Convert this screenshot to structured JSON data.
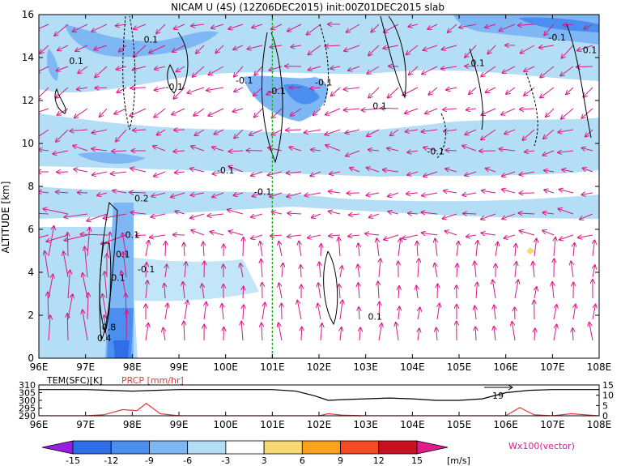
{
  "chart_data": {
    "type": "heatmap",
    "title": "NICAM U (4S) (12Z06DEC2015) init:00Z01DEC2015 slab",
    "ylabel": "ALTITUDE [km]",
    "xlabel": "",
    "x_ticks": [
      "96E",
      "97E",
      "98E",
      "99E",
      "100E",
      "101E",
      "102E",
      "103E",
      "104E",
      "105E",
      "106E",
      "107E",
      "108E"
    ],
    "y_ticks": [
      "0",
      "2",
      "4",
      "6",
      "8",
      "10",
      "12",
      "14",
      "16"
    ],
    "xlim": [
      96,
      108
    ],
    "ylim": [
      0,
      16
    ],
    "marker_longitude": 101,
    "contour_labels": [
      {
        "text": "0.1",
        "x": 96.8,
        "y": 13.7
      },
      {
        "text": "0.1",
        "x": 98.4,
        "y": 14.7
      },
      {
        "text": "-0.1",
        "x": 98.9,
        "y": 12.5
      },
      {
        "text": "-0.1",
        "x": 100.4,
        "y": 12.8
      },
      {
        "text": "-0.1",
        "x": 101.1,
        "y": 12.3
      },
      {
        "text": "-0.1",
        "x": 102.1,
        "y": 12.7
      },
      {
        "text": "0.1",
        "x": 103.3,
        "y": 11.6
      },
      {
        "text": "-0.1",
        "x": 104.5,
        "y": 9.5
      },
      {
        "text": "0.1",
        "x": 105.4,
        "y": 13.6
      },
      {
        "text": "-0.1",
        "x": 107.1,
        "y": 14.8
      },
      {
        "text": "0.1",
        "x": 107.8,
        "y": 14.2
      },
      {
        "text": "-0.1",
        "x": 100.0,
        "y": 8.6
      },
      {
        "text": "-0.1",
        "x": 100.8,
        "y": 7.6
      },
      {
        "text": "0.2",
        "x": 98.2,
        "y": 7.3
      },
      {
        "text": "0.1",
        "x": 98.0,
        "y": 5.6
      },
      {
        "text": "0.1",
        "x": 97.8,
        "y": 4.7
      },
      {
        "text": "-0.1",
        "x": 98.3,
        "y": 4.0
      },
      {
        "text": "0.1",
        "x": 97.7,
        "y": 3.6
      },
      {
        "text": "0.1",
        "x": 103.2,
        "y": 1.8
      },
      {
        "text": "0.8",
        "x": 97.5,
        "y": 1.3
      },
      {
        "text": "0.4",
        "x": 97.4,
        "y": 0.8
      }
    ],
    "colorbar": {
      "levels": [
        "-15",
        "-12",
        "-9",
        "-6",
        "-3",
        "3",
        "6",
        "9",
        "12",
        "15"
      ],
      "unit": "[m/s]",
      "colors": [
        "#9a1ee0",
        "#2f6ee6",
        "#4a8ff0",
        "#7fb6f4",
        "#b3def6",
        "#ffffff",
        "#f7d873",
        "#f9a21e",
        "#f64a22",
        "#c8101e",
        "#e01c8c"
      ]
    },
    "vector_label": "Wx100(vector)",
    "sub_panel": {
      "labels": {
        "tem": "TEM(SFC)[K]",
        "prcp": "PRCP [mm/hr]"
      },
      "left_ticks": [
        "310",
        "305",
        "300",
        "295",
        "290"
      ],
      "left_range": [
        290,
        310
      ],
      "right_ticks": [
        "15",
        "10",
        "5",
        "0"
      ],
      "right_range": [
        0,
        15
      ],
      "tem_series": {
        "x": [
          96,
          97,
          97.5,
          98,
          98.5,
          99,
          100,
          101,
          101.5,
          101.9,
          102.2,
          102.5,
          103,
          103.5,
          104,
          104.5,
          105,
          105.5,
          106,
          106.5,
          107,
          107.5,
          108
        ],
        "y": [
          307,
          307,
          306.5,
          306,
          306.5,
          307,
          307,
          307,
          306,
          303,
          300,
          300.5,
          301,
          301.5,
          301,
          300,
          300,
          301,
          305,
          306.5,
          307,
          307,
          307
        ]
      },
      "prcp_series": {
        "x": [
          96,
          97,
          97.4,
          97.8,
          98.1,
          98.3,
          98.6,
          99,
          100,
          101,
          102,
          102.2,
          102.5,
          103,
          104,
          105,
          106,
          106.3,
          106.6,
          107,
          107.4,
          107.8,
          108
        ],
        "y": [
          0,
          0,
          0.5,
          3,
          2.5,
          6,
          1,
          0,
          0,
          0,
          0,
          1,
          0.3,
          0,
          0,
          0,
          0,
          4,
          0.5,
          0,
          1,
          0.3,
          0
        ]
      },
      "annotation": "19"
    }
  }
}
